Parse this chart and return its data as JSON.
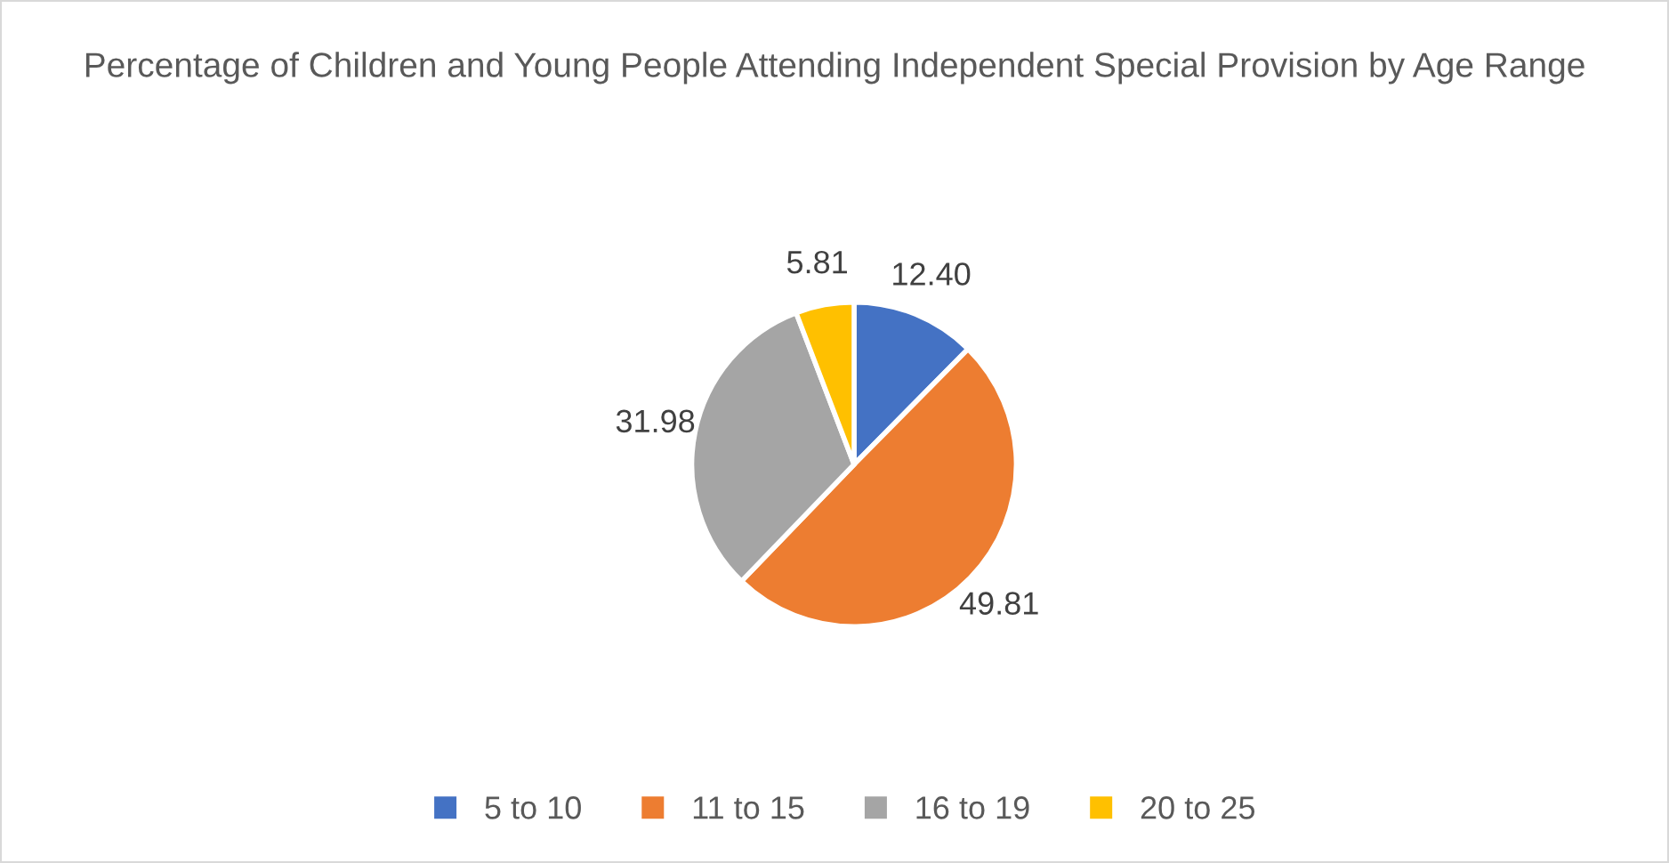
{
  "chart_data": {
    "type": "pie",
    "title": "Percentage of Children and Young People Attending Independent Special Provision by Age Range",
    "categories": [
      "5 to 10",
      "11 to 15",
      "16 to 19",
      "20 to 25"
    ],
    "values": [
      12.4,
      49.81,
      31.98,
      5.81
    ],
    "value_labels": [
      "12.40",
      "49.81",
      "31.98",
      "5.81"
    ],
    "colors": [
      "#4472c4",
      "#ed7d31",
      "#a5a5a5",
      "#ffc000"
    ],
    "legend": "bottom"
  }
}
